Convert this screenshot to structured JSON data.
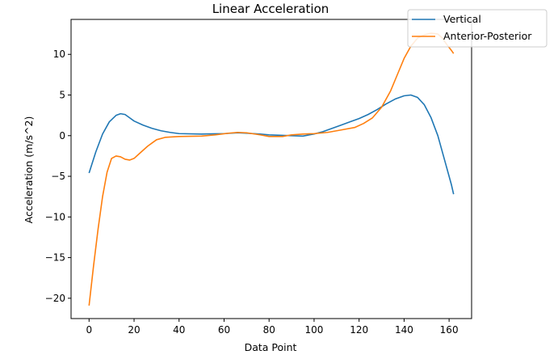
{
  "chart_data": {
    "type": "line",
    "title": "Linear Acceleration",
    "xlabel": "Data Point",
    "ylabel": "Acceleration (m/s^2)",
    "xlim": [
      -8,
      170
    ],
    "ylim": [
      -22.5,
      14.3
    ],
    "xticks": [
      0,
      20,
      40,
      60,
      80,
      100,
      120,
      140,
      160
    ],
    "yticks": [
      -20,
      -15,
      -10,
      -5,
      0,
      5,
      10
    ],
    "ytick_labels": [
      "−20",
      "−15",
      "−10",
      "−5",
      "0",
      "5",
      "10"
    ],
    "grid": false,
    "legend_position": "top-right",
    "series": [
      {
        "name": "Vertical",
        "color": "#1f77b4",
        "points": [
          [
            0,
            -4.6
          ],
          [
            3,
            -2.0
          ],
          [
            6,
            0.2
          ],
          [
            9,
            1.7
          ],
          [
            12,
            2.5
          ],
          [
            14,
            2.7
          ],
          [
            16,
            2.6
          ],
          [
            18,
            2.2
          ],
          [
            20,
            1.8
          ],
          [
            24,
            1.3
          ],
          [
            28,
            0.9
          ],
          [
            32,
            0.6
          ],
          [
            36,
            0.4
          ],
          [
            40,
            0.25
          ],
          [
            50,
            0.2
          ],
          [
            60,
            0.25
          ],
          [
            66,
            0.35
          ],
          [
            70,
            0.3
          ],
          [
            76,
            0.2
          ],
          [
            80,
            0.1
          ],
          [
            85,
            0.05
          ],
          [
            90,
            0.0
          ],
          [
            95,
            -0.05
          ],
          [
            100,
            0.2
          ],
          [
            104,
            0.5
          ],
          [
            108,
            0.9
          ],
          [
            112,
            1.3
          ],
          [
            116,
            1.7
          ],
          [
            120,
            2.1
          ],
          [
            124,
            2.6
          ],
          [
            128,
            3.2
          ],
          [
            132,
            3.9
          ],
          [
            136,
            4.5
          ],
          [
            140,
            4.9
          ],
          [
            143,
            5.0
          ],
          [
            146,
            4.7
          ],
          [
            149,
            3.8
          ],
          [
            152,
            2.2
          ],
          [
            155,
            0.0
          ],
          [
            158,
            -3.0
          ],
          [
            161,
            -6.0
          ],
          [
            162,
            -7.2
          ]
        ]
      },
      {
        "name": "Anterior-Posterior",
        "color": "#ff7f0e",
        "points": [
          [
            0,
            -20.9
          ],
          [
            2,
            -16.0
          ],
          [
            4,
            -11.5
          ],
          [
            6,
            -7.5
          ],
          [
            8,
            -4.5
          ],
          [
            10,
            -2.8
          ],
          [
            12,
            -2.5
          ],
          [
            14,
            -2.6
          ],
          [
            16,
            -2.9
          ],
          [
            18,
            -3.0
          ],
          [
            20,
            -2.8
          ],
          [
            22,
            -2.3
          ],
          [
            24,
            -1.8
          ],
          [
            26,
            -1.3
          ],
          [
            28,
            -0.9
          ],
          [
            30,
            -0.5
          ],
          [
            34,
            -0.2
          ],
          [
            40,
            -0.1
          ],
          [
            50,
            -0.05
          ],
          [
            56,
            0.1
          ],
          [
            62,
            0.3
          ],
          [
            66,
            0.4
          ],
          [
            70,
            0.35
          ],
          [
            76,
            0.1
          ],
          [
            80,
            -0.1
          ],
          [
            86,
            -0.1
          ],
          [
            90,
            0.1
          ],
          [
            95,
            0.2
          ],
          [
            100,
            0.25
          ],
          [
            106,
            0.4
          ],
          [
            112,
            0.7
          ],
          [
            118,
            1.0
          ],
          [
            122,
            1.5
          ],
          [
            126,
            2.2
          ],
          [
            130,
            3.5
          ],
          [
            134,
            5.5
          ],
          [
            137,
            7.5
          ],
          [
            140,
            9.5
          ],
          [
            143,
            11.0
          ],
          [
            146,
            12.0
          ],
          [
            149,
            12.4
          ],
          [
            152,
            12.6
          ],
          [
            155,
            12.5
          ],
          [
            157,
            12.0
          ],
          [
            159,
            11.2
          ],
          [
            161,
            10.5
          ],
          [
            162,
            10.1
          ]
        ]
      }
    ]
  }
}
